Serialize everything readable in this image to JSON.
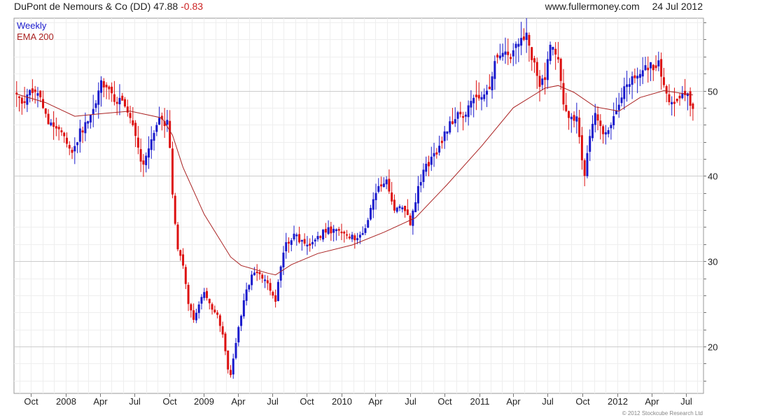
{
  "header": {
    "title": "DuPont de Nemours & Co (DD)",
    "last": "47.88",
    "change": "-0.83",
    "site": "www.fullermoney.com",
    "date": "24 Jul 2012"
  },
  "legend": {
    "weekly": "Weekly",
    "ema": "EMA 200"
  },
  "copyright": "© 2012 Stockcube Research Ltd",
  "colors": {
    "up": "#1a1acc",
    "down": "#dd1111",
    "ema": "#aa2222",
    "grid": "#dddddd",
    "axis": "#555555"
  },
  "chart_data": {
    "type": "candlestick",
    "frequency": "weekly",
    "ylim": [
      14.5,
      58.5
    ],
    "yticks": [
      20,
      30,
      40,
      50
    ],
    "x_range": [
      "2007-08-17",
      "2012-08-17"
    ],
    "xticks": [
      {
        "label": "Oct",
        "date": "2007-10-01"
      },
      {
        "label": "2008",
        "date": "2008-01-01"
      },
      {
        "label": "Apr",
        "date": "2008-04-01"
      },
      {
        "label": "Jul",
        "date": "2008-07-01"
      },
      {
        "label": "Oct",
        "date": "2008-10-01"
      },
      {
        "label": "2009",
        "date": "2009-01-01"
      },
      {
        "label": "Apr",
        "date": "2009-04-01"
      },
      {
        "label": "Jul",
        "date": "2009-07-01"
      },
      {
        "label": "Oct",
        "date": "2009-10-01"
      },
      {
        "label": "2010",
        "date": "2010-01-01"
      },
      {
        "label": "Apr",
        "date": "2010-04-01"
      },
      {
        "label": "Jul",
        "date": "2010-07-01"
      },
      {
        "label": "Oct",
        "date": "2010-10-01"
      },
      {
        "label": "2011",
        "date": "2011-01-01"
      },
      {
        "label": "Apr",
        "date": "2011-04-01"
      },
      {
        "label": "Jul",
        "date": "2011-07-01"
      },
      {
        "label": "Oct",
        "date": "2011-10-01"
      },
      {
        "label": "2012",
        "date": "2012-01-01"
      },
      {
        "label": "Apr",
        "date": "2012-04-01"
      },
      {
        "label": "Jul",
        "date": "2012-07-01"
      }
    ],
    "close_anchors": [
      [
        "2007-08-24",
        49.2
      ],
      [
        "2007-09-14",
        48.6
      ],
      [
        "2007-10-05",
        50.1
      ],
      [
        "2007-10-26",
        48.8
      ],
      [
        "2007-11-16",
        46.5
      ],
      [
        "2007-12-07",
        45.6
      ],
      [
        "2007-12-28",
        44.8
      ],
      [
        "2008-01-18",
        42.6
      ],
      [
        "2008-02-08",
        45.1
      ],
      [
        "2008-02-29",
        46.5
      ],
      [
        "2008-03-21",
        48.9
      ],
      [
        "2008-04-04",
        51.5
      ],
      [
        "2008-04-18",
        50.2
      ],
      [
        "2008-05-09",
        49.1
      ],
      [
        "2008-05-30",
        48.5
      ],
      [
        "2008-06-20",
        46.8
      ],
      [
        "2008-07-11",
        43.0
      ],
      [
        "2008-07-25",
        41.2
      ],
      [
        "2008-08-15",
        44.2
      ],
      [
        "2008-09-05",
        46.5
      ],
      [
        "2008-09-26",
        46.2
      ],
      [
        "2008-10-03",
        43.5
      ],
      [
        "2008-10-10",
        37.5
      ],
      [
        "2008-10-24",
        31.2
      ],
      [
        "2008-11-07",
        29.5
      ],
      [
        "2008-11-21",
        25.0
      ],
      [
        "2008-12-05",
        23.2
      ],
      [
        "2008-12-19",
        25.2
      ],
      [
        "2009-01-02",
        26.1
      ],
      [
        "2009-01-16",
        25.0
      ],
      [
        "2009-02-06",
        23.6
      ],
      [
        "2009-02-20",
        21.5
      ],
      [
        "2009-03-06",
        17.5
      ],
      [
        "2009-03-13",
        16.8
      ],
      [
        "2009-03-27",
        20.5
      ],
      [
        "2009-04-17",
        25.4
      ],
      [
        "2009-05-08",
        28.4
      ],
      [
        "2009-05-29",
        28.5
      ],
      [
        "2009-06-19",
        27.2
      ],
      [
        "2009-07-10",
        25.0
      ],
      [
        "2009-07-24",
        29.6
      ],
      [
        "2009-08-07",
        32.0
      ],
      [
        "2009-08-28",
        33.1
      ],
      [
        "2009-09-18",
        32.2
      ],
      [
        "2009-10-09",
        31.7
      ],
      [
        "2009-10-30",
        32.8
      ],
      [
        "2009-11-20",
        33.7
      ],
      [
        "2009-12-11",
        33.5
      ],
      [
        "2010-01-01",
        33.6
      ],
      [
        "2010-01-22",
        33.0
      ],
      [
        "2010-02-12",
        32.5
      ],
      [
        "2010-03-05",
        33.8
      ],
      [
        "2010-03-26",
        37.0
      ],
      [
        "2010-04-09",
        39.0
      ],
      [
        "2010-04-30",
        39.4
      ],
      [
        "2010-05-21",
        36.0
      ],
      [
        "2010-06-11",
        36.4
      ],
      [
        "2010-07-02",
        34.5
      ],
      [
        "2010-07-23",
        38.5
      ],
      [
        "2010-08-13",
        41.2
      ],
      [
        "2010-09-03",
        42.3
      ],
      [
        "2010-09-24",
        44.3
      ],
      [
        "2010-10-15",
        46.2
      ],
      [
        "2010-11-05",
        47.1
      ],
      [
        "2010-11-26",
        47.0
      ],
      [
        "2010-12-17",
        49.4
      ],
      [
        "2011-01-07",
        49.7
      ],
      [
        "2011-01-28",
        50.5
      ],
      [
        "2011-02-11",
        53.8
      ],
      [
        "2011-03-04",
        54.2
      ],
      [
        "2011-03-25",
        54.3
      ],
      [
        "2011-04-15",
        55.6
      ],
      [
        "2011-05-06",
        56.2
      ],
      [
        "2011-05-20",
        54.0
      ],
      [
        "2011-06-10",
        50.5
      ],
      [
        "2011-06-24",
        51.5
      ],
      [
        "2011-07-08",
        55.2
      ],
      [
        "2011-07-29",
        53.8
      ],
      [
        "2011-08-12",
        48.0
      ],
      [
        "2011-08-26",
        46.6
      ],
      [
        "2011-09-16",
        46.9
      ],
      [
        "2011-09-30",
        42.0
      ],
      [
        "2011-10-07",
        40.2
      ],
      [
        "2011-10-21",
        44.3
      ],
      [
        "2011-11-04",
        47.0
      ],
      [
        "2011-11-25",
        44.8
      ],
      [
        "2011-12-16",
        45.8
      ],
      [
        "2012-01-06",
        48.0
      ],
      [
        "2012-01-27",
        51.2
      ],
      [
        "2012-02-17",
        51.4
      ],
      [
        "2012-03-09",
        52.3
      ],
      [
        "2012-03-30",
        52.8
      ],
      [
        "2012-04-20",
        53.0
      ],
      [
        "2012-05-04",
        50.8
      ],
      [
        "2012-05-18",
        48.8
      ],
      [
        "2012-06-08",
        48.4
      ],
      [
        "2012-06-29",
        50.0
      ],
      [
        "2012-07-13",
        48.5
      ],
      [
        "2012-07-20",
        47.9
      ]
    ],
    "ema_200_anchors": [
      [
        "2007-08-24",
        49.6
      ],
      [
        "2007-11-09",
        48.6
      ],
      [
        "2008-01-25",
        47.0
      ],
      [
        "2008-04-04",
        47.3
      ],
      [
        "2008-06-20",
        47.6
      ],
      [
        "2008-09-12",
        46.8
      ],
      [
        "2008-10-10",
        44.8
      ],
      [
        "2008-11-07",
        41.0
      ],
      [
        "2009-01-02",
        35.5
      ],
      [
        "2009-03-13",
        30.5
      ],
      [
        "2009-04-10",
        29.5
      ],
      [
        "2009-06-19",
        28.6
      ],
      [
        "2009-07-10",
        28.4
      ],
      [
        "2009-08-21",
        29.6
      ],
      [
        "2009-10-30",
        30.9
      ],
      [
        "2010-01-29",
        31.9
      ],
      [
        "2010-04-23",
        33.4
      ],
      [
        "2010-07-16",
        35.1
      ],
      [
        "2010-10-08",
        39.0
      ],
      [
        "2011-01-07",
        43.5
      ],
      [
        "2011-04-01",
        48.0
      ],
      [
        "2011-06-24",
        50.3
      ],
      [
        "2011-07-29",
        50.6
      ],
      [
        "2011-09-09",
        49.8
      ],
      [
        "2011-11-04",
        48.1
      ],
      [
        "2012-01-06",
        47.6
      ],
      [
        "2012-03-02",
        49.2
      ],
      [
        "2012-05-04",
        50.0
      ],
      [
        "2012-07-20",
        49.5
      ]
    ]
  }
}
